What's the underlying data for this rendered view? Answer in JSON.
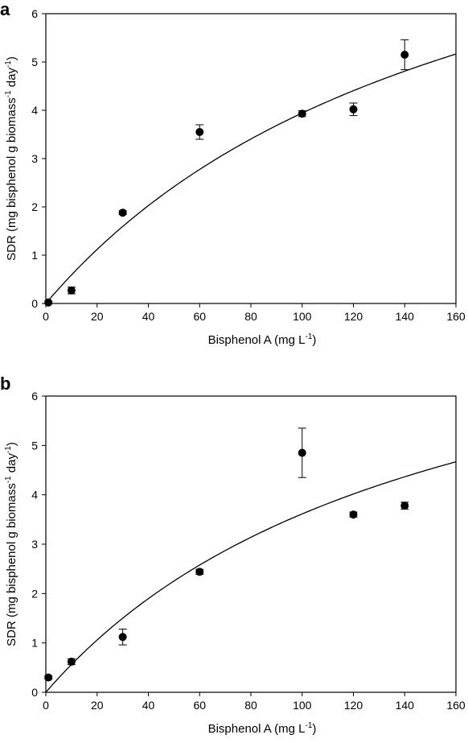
{
  "chart_data": [
    {
      "type": "scatter",
      "panel": "a",
      "xlabel": "Bisphenol A (mg L",
      "xlabel_sup": "-1",
      "xlabel_tail": ")",
      "ylabel_parts": [
        "SDR (mg bisphenol g biomass",
        "-1",
        " day",
        "-1",
        ")"
      ],
      "xlim": [
        0,
        160
      ],
      "ylim": [
        0,
        6
      ],
      "xticks": [
        "0",
        "20",
        "40",
        "60",
        "80",
        "100",
        "120",
        "140",
        "160"
      ],
      "yticks": [
        "0",
        "1",
        "2",
        "3",
        "4",
        "5",
        "6"
      ],
      "grid": false,
      "points": [
        {
          "x": 1,
          "y": 0.02,
          "err": 0.03
        },
        {
          "x": 10,
          "y": 0.27,
          "err": 0.07
        },
        {
          "x": 30,
          "y": 1.88,
          "err": 0.04
        },
        {
          "x": 60,
          "y": 3.55,
          "err": 0.15
        },
        {
          "x": 100,
          "y": 3.93,
          "err": 0.06
        },
        {
          "x": 120,
          "y": 4.02,
          "err": 0.13
        },
        {
          "x": 140,
          "y": 5.15,
          "err": 0.31
        }
      ],
      "fit": {
        "model": "saturation",
        "vmax": 10.68,
        "k": 170.9
      }
    },
    {
      "type": "scatter",
      "panel": "b",
      "xlabel": "Bisphenol A (mg L",
      "xlabel_sup": "-1",
      "xlabel_tail": ")",
      "ylabel_parts": [
        "SDR (mg bisphenol g biomass",
        "-1",
        " day",
        "-1",
        ")"
      ],
      "xlim": [
        0,
        160
      ],
      "ylim": [
        0,
        6
      ],
      "xticks": [
        "0",
        "20",
        "40",
        "60",
        "80",
        "100",
        "120",
        "140",
        "160"
      ],
      "yticks": [
        "0",
        "1",
        "2",
        "3",
        "4",
        "5",
        "6"
      ],
      "grid": false,
      "points": [
        {
          "x": 1,
          "y": 0.3,
          "err": 0.03
        },
        {
          "x": 10,
          "y": 0.62,
          "err": 0.06
        },
        {
          "x": 30,
          "y": 1.12,
          "err": 0.16
        },
        {
          "x": 60,
          "y": 2.44,
          "err": 0.05
        },
        {
          "x": 100,
          "y": 4.85,
          "err": 0.5
        },
        {
          "x": 120,
          "y": 3.6,
          "err": 0.05
        },
        {
          "x": 140,
          "y": 3.78,
          "err": 0.07
        }
      ],
      "fit": {
        "model": "saturation",
        "vmax": 9.1,
        "k": 151.9
      }
    }
  ]
}
